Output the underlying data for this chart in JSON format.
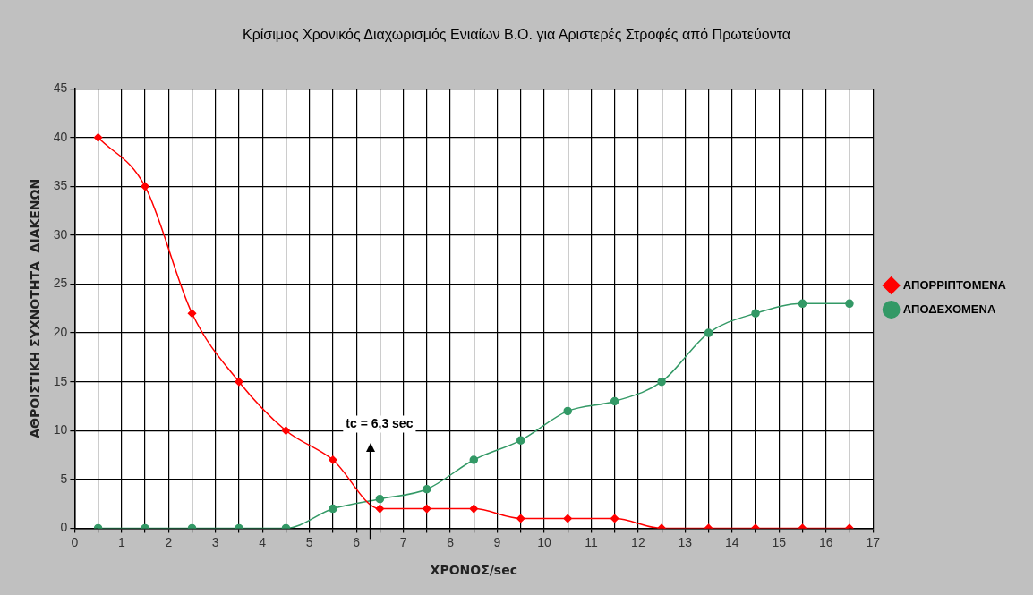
{
  "chart_data": {
    "type": "line",
    "title": "Κρίσιμος Χρονικός Διαχωρισμός Ενιαίων Β.Ο. για Αριστερές Στροφές από Πρωτεύοντα",
    "xlabel": "ΧΡΟΝΟΣ/sec",
    "ylabel": "ΑΘΡΟΙΣΤΙΚΗ ΣΥΧΝΟΤΗΤΑ  ΔΙΑΚΕΝΩΝ",
    "x": [
      0.5,
      1.5,
      2.5,
      3.5,
      4.5,
      5.5,
      6.5,
      7.5,
      8.5,
      9.5,
      10.5,
      11.5,
      12.5,
      13.5,
      14.5,
      15.5,
      16.5
    ],
    "series": [
      {
        "name": "ΑΠΟΡΡΙΠΤΟΜΕΝΑ",
        "color": "#ff0000",
        "marker": "diamond",
        "values": [
          40,
          35,
          22,
          15,
          10,
          7,
          2,
          2,
          2,
          1,
          1,
          1,
          0,
          0,
          0,
          0,
          0
        ]
      },
      {
        "name": "ΑΠΟΔΕΧΟΜΕΝΑ",
        "color": "#339966",
        "marker": "circle",
        "values": [
          0,
          0,
          0,
          0,
          0,
          2,
          3,
          4,
          7,
          9,
          12,
          13,
          15,
          20,
          22,
          23,
          23
        ]
      }
    ],
    "xlim": [
      0,
      17
    ],
    "xticks": [
      0,
      {
        "value": 0.5,
        "label": null
      },
      1,
      {
        "value": 1.5,
        "label": null
      },
      2,
      {
        "value": 2.5,
        "label": null
      },
      3,
      {
        "value": 3.5,
        "label": null
      },
      4,
      {
        "value": 4.5,
        "label": null
      },
      5,
      {
        "value": 5.5,
        "label": null
      },
      6,
      {
        "value": 6.5,
        "label": null
      },
      7,
      {
        "value": 7.5,
        "label": null
      },
      8,
      {
        "value": 8.5,
        "label": null
      },
      9,
      {
        "value": 9.5,
        "label": null
      },
      10,
      {
        "value": 10.5,
        "label": null
      },
      11,
      {
        "value": 11.5,
        "label": null
      },
      12,
      {
        "value": 12.5,
        "label": null
      },
      13,
      {
        "value": 13.5,
        "label": null
      },
      14,
      {
        "value": 14.5,
        "label": null
      },
      15,
      {
        "value": 15.5,
        "label": null
      },
      16,
      {
        "value": 16.5,
        "label": null
      },
      17
    ],
    "ylim": [
      0,
      45
    ],
    "yticks": [
      0,
      5,
      10,
      15,
      20,
      25,
      30,
      35,
      40,
      45
    ],
    "ref_lines": [
      {
        "axis": "x",
        "value": 6.3,
        "label": "tc = 6,3 sec",
        "color": "#000000"
      }
    ],
    "grid": true,
    "legend": "right",
    "line_style": "solid"
  }
}
